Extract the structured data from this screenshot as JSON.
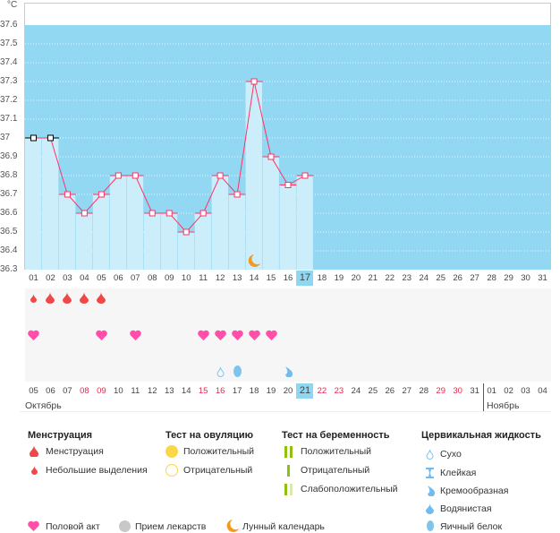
{
  "unit": "°C",
  "y_ticks": [
    "37.6",
    "37.5",
    "37.4",
    "37.3",
    "37.2",
    "37.1",
    "37",
    "36.9",
    "36.8",
    "36.7",
    "36.6",
    "36.5",
    "36.4",
    "36.3"
  ],
  "chart_data": {
    "type": "line",
    "x": [
      "01",
      "02",
      "03",
      "04",
      "05",
      "06",
      "07",
      "08",
      "09",
      "10",
      "11",
      "12",
      "13",
      "14",
      "15",
      "16",
      "17"
    ],
    "values": [
      37.0,
      37.0,
      36.7,
      36.6,
      36.7,
      36.8,
      36.8,
      36.6,
      36.6,
      36.5,
      36.6,
      36.8,
      36.7,
      37.3,
      36.9,
      36.75,
      36.8
    ],
    "ylim": [
      36.3,
      37.6
    ],
    "grid": true,
    "line_color": "#ff3366",
    "bar_color": "#cceefa",
    "background": "#92d8f2"
  },
  "cycle_days": [
    "01",
    "02",
    "03",
    "04",
    "05",
    "06",
    "07",
    "08",
    "09",
    "10",
    "11",
    "12",
    "13",
    "14",
    "15",
    "16",
    "17",
    "18",
    "19",
    "20",
    "21",
    "22",
    "23",
    "24",
    "25",
    "26",
    "27",
    "28",
    "29",
    "30",
    "31"
  ],
  "current_cycle_day": "17",
  "dates": [
    "05",
    "06",
    "07",
    "08",
    "09",
    "10",
    "11",
    "12",
    "13",
    "14",
    "15",
    "16",
    "17",
    "18",
    "19",
    "20",
    "21",
    "22",
    "23",
    "24",
    "25",
    "26",
    "27",
    "28",
    "29",
    "30",
    "31",
    "01",
    "02",
    "03",
    "04"
  ],
  "red_dates": [
    "08",
    "09",
    "15",
    "16",
    "22",
    "23",
    "29",
    "30"
  ],
  "current_date": "21",
  "months": [
    "Октябрь",
    "Ноябрь"
  ],
  "menstruation_days": {
    "light": [
      1
    ],
    "full": [
      2,
      3,
      4,
      5
    ]
  },
  "intercourse_days": [
    1,
    5,
    7,
    11,
    12,
    13,
    14,
    15
  ],
  "cervical_days": {
    "dry": [
      12
    ],
    "egg_white": [
      13
    ],
    "creamy": [
      16
    ]
  },
  "moon_day": 14,
  "legend": {
    "menstruation": {
      "title": "Менструация",
      "items": [
        "Менструация",
        "Небольшие выделения"
      ]
    },
    "ovulation": {
      "title": "Тест на овуляцию",
      "items": [
        "Положительный",
        "Отрицательный"
      ]
    },
    "pregnancy": {
      "title": "Тест на беременность",
      "items": [
        "Положительный",
        "Отрицательный",
        "Слабоположительный"
      ]
    },
    "cervical": {
      "title": "Цервикальная жидкость",
      "items": [
        "Сухо",
        "Клейкая",
        "Кремообразная",
        "Водянистая",
        "Яичный белок"
      ]
    },
    "bottom": [
      "Половой акт",
      "Прием лекарств",
      "Лунный календарь"
    ]
  }
}
